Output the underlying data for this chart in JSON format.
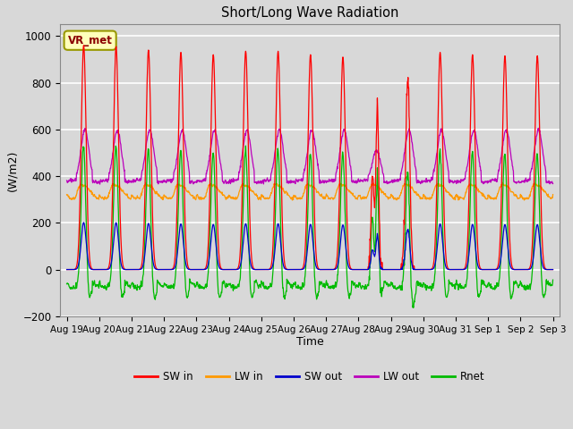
{
  "title": "Short/Long Wave Radiation",
  "xlabel": "Time",
  "ylabel": "(W/m2)",
  "ylim": [
    -200,
    1050
  ],
  "station_label": "VR_met",
  "colors": {
    "SW_in": "#ff0000",
    "LW_in": "#ff9900",
    "SW_out": "#0000cc",
    "LW_out": "#bb00bb",
    "Rnet": "#00bb00"
  },
  "legend_labels": [
    "SW in",
    "LW in",
    "SW out",
    "LW out",
    "Rnet"
  ],
  "tick_labels": [
    "Aug 19",
    "Aug 20",
    "Aug 21",
    "Aug 22",
    "Aug 23",
    "Aug 24",
    "Aug 25",
    "Aug 26",
    "Aug 27",
    "Aug 28",
    "Aug 29",
    "Aug 30",
    "Aug 31",
    "Sep 1",
    "Sep 2",
    "Sep 3"
  ],
  "plot_bg": "#d8d8d8",
  "fig_bg": "#d8d8d8",
  "grid_color": "#ffffff",
  "num_days": 15,
  "dt_hours": 0.25
}
